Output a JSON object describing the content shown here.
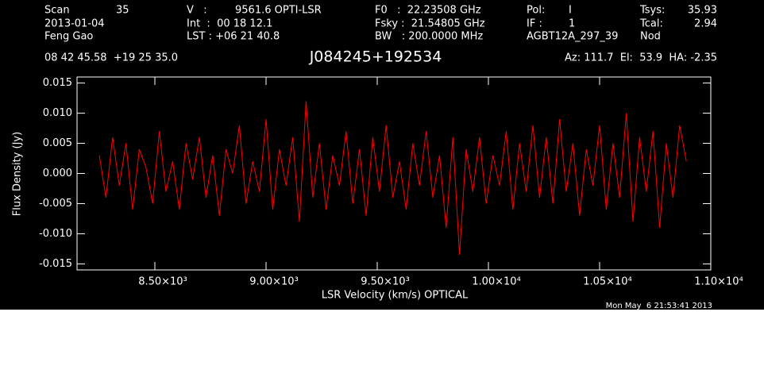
{
  "chart_data": {
    "type": "line",
    "title": "J084245+192534",
    "header": [
      "Scan",
      "35",
      "2013-01-04",
      "Feng Gao",
      "V   :",
      "9561.6 OPTI-LSR",
      "Int  :  00 18 12.1",
      "LST : +06 21 40.8",
      "F0   :  22.23508 GHz",
      "Fsky :  21.54805 GHz",
      "BW   : 200.0000 MHz",
      "Pol:",
      "I",
      "IF :",
      "1",
      "AGBT12A_297_39",
      "Tsys:",
      "35.93",
      "Tcal:",
      "2.94",
      "Nod",
      "08 42 45.58  +19 25 35.0",
      "Az: 111.7  El:  53.9  HA: -2.35"
    ],
    "xlabel": "LSR Velocity (km/s) OPTICAL",
    "ylabel": "Flux Density (Jy)",
    "timestamp": "Mon May  6 21:53:41 2013",
    "xlim": [
      8150,
      11000
    ],
    "ylim": [
      -0.016,
      0.016
    ],
    "xticks": [
      {
        "value": 8500,
        "label": "8.50×10³"
      },
      {
        "value": 9000,
        "label": "9.00×10³"
      },
      {
        "value": 9500,
        "label": "9.50×10³"
      },
      {
        "value": 10000,
        "label": "1.00×10⁴"
      },
      {
        "value": 10500,
        "label": "1.05×10⁴"
      },
      {
        "value": 11000,
        "label": "1.10×10⁴"
      }
    ],
    "yticks": [
      -0.015,
      {
        "value": -0.01,
        "label": "-0.010"
      },
      -0.005,
      {
        "value": 0,
        "label": "0.000"
      },
      0.005,
      {
        "value": 0.01,
        "label": "0.010"
      },
      0.015
    ],
    "x": [
      8250,
      8280,
      8310,
      8340,
      8370,
      8400,
      8430,
      8460,
      8490,
      8520,
      8550,
      8580,
      8610,
      8640,
      8670,
      8700,
      8730,
      8760,
      8790,
      8820,
      8850,
      8880,
      8910,
      8940,
      8970,
      9000,
      9030,
      9060,
      9090,
      9120,
      9150,
      9180,
      9210,
      9240,
      9270,
      9300,
      9330,
      9360,
      9390,
      9420,
      9450,
      9480,
      9510,
      9540,
      9570,
      9600,
      9630,
      9660,
      9690,
      9720,
      9750,
      9780,
      9810,
      9840,
      9870,
      9900,
      9930,
      9960,
      9990,
      10020,
      10050,
      10080,
      10110,
      10140,
      10170,
      10200,
      10230,
      10260,
      10290,
      10320,
      10350,
      10380,
      10410,
      10440,
      10470,
      10500,
      10530,
      10560,
      10590,
      10620,
      10650,
      10680,
      10710,
      10740,
      10770,
      10800,
      10830,
      10860,
      10890
    ],
    "series": [
      {
        "color": "#ff0000",
        "values": [
          0.003,
          -0.004,
          0.006,
          -0.002,
          0.005,
          -0.006,
          0.004,
          0.001,
          -0.005,
          0.007,
          -0.003,
          0.002,
          -0.006,
          0.005,
          -0.001,
          0.006,
          -0.004,
          0.003,
          -0.007,
          0.004,
          0.0,
          0.008,
          -0.005,
          0.002,
          -0.003,
          0.009,
          -0.006,
          0.004,
          -0.002,
          0.006,
          -0.008,
          0.012,
          -0.004,
          0.005,
          -0.006,
          0.003,
          -0.002,
          0.007,
          -0.005,
          0.004,
          -0.007,
          0.006,
          -0.003,
          0.008,
          -0.004,
          0.002,
          -0.006,
          0.005,
          -0.002,
          0.007,
          -0.004,
          0.003,
          -0.009,
          0.006,
          -0.0135,
          0.004,
          -0.003,
          0.006,
          -0.005,
          0.003,
          -0.002,
          0.007,
          -0.006,
          0.005,
          -0.003,
          0.008,
          -0.004,
          0.006,
          -0.005,
          0.009,
          -0.003,
          0.005,
          -0.007,
          0.004,
          -0.002,
          0.008,
          -0.006,
          0.005,
          -0.004,
          0.01,
          -0.008,
          0.006,
          -0.003,
          0.007,
          -0.009,
          0.005,
          -0.004,
          0.008,
          0.002
        ]
      }
    ]
  }
}
